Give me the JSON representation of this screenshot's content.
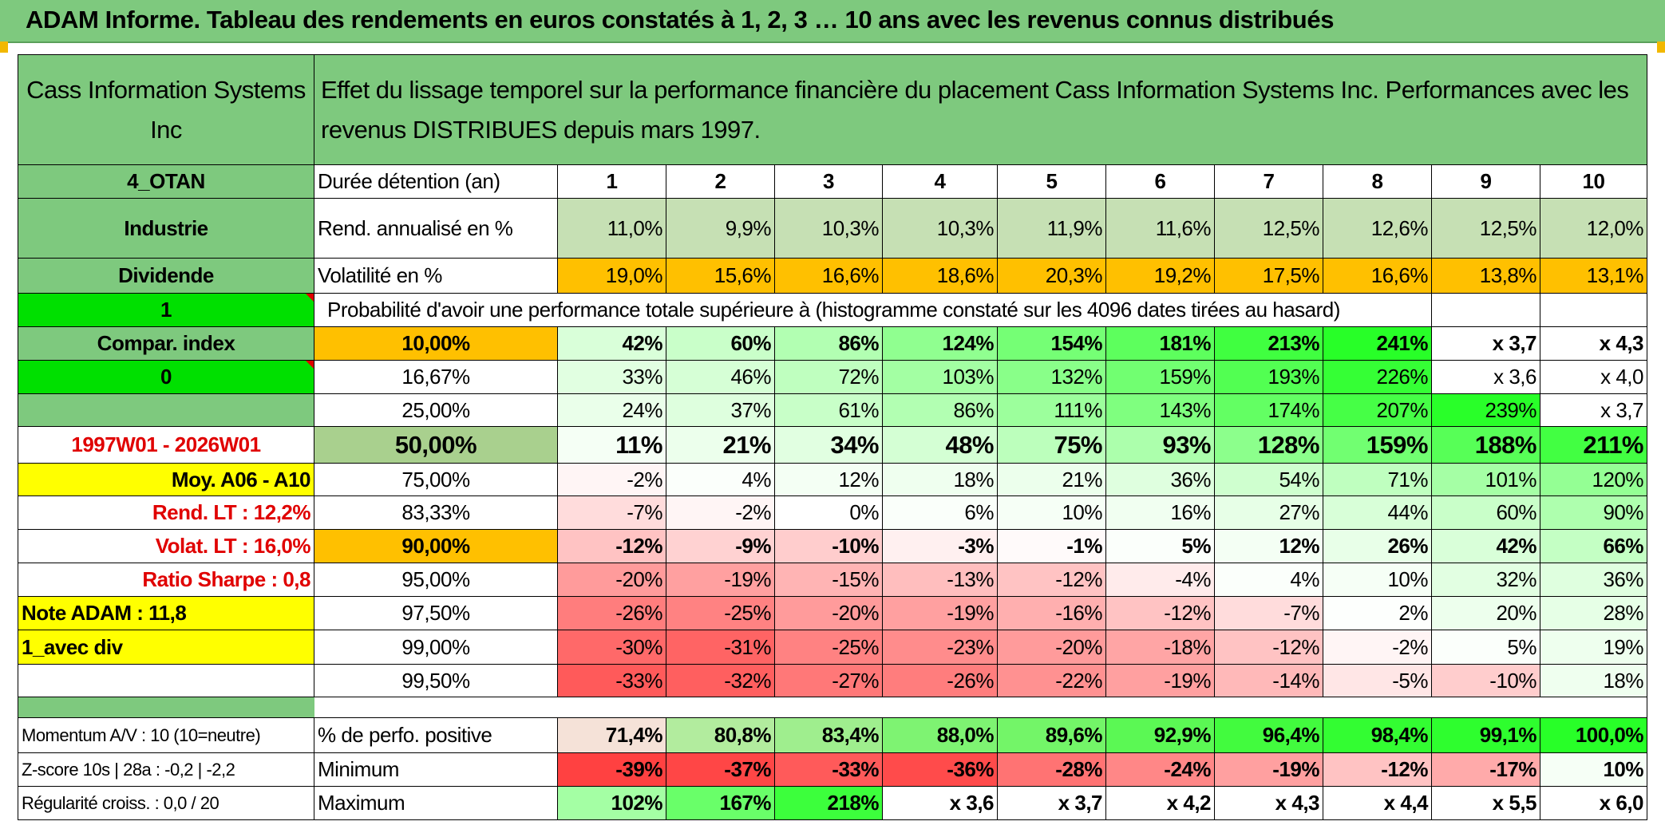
{
  "title": "ADAM Informe. Tableau des rendements en euros constatés à 1, 2, 3 … 10 ans avec les revenus connus distribués",
  "header": {
    "company": "Cass Information Systems Inc",
    "description": "Effet du lissage temporel sur la performance financière du placement Cass Information Systems Inc. Performances avec les revenus DISTRIBUES depuis mars 1997."
  },
  "sidebar": {
    "code": "4_OTAN",
    "sector": "Industrie",
    "dividend": "Dividende",
    "value_1": "1",
    "compar_index": "Compar. index",
    "value_0": "0",
    "period": "1997W01 - 2026W01",
    "moy": "Moy. A06 - A10",
    "rend_lt": "Rend. LT :    12,2%",
    "volat_lt": "Volat. LT :    16,0%",
    "sharpe": "Ratio Sharpe :    0,8",
    "note": "Note ADAM : 11,8",
    "avec_div": "1_avec div",
    "momentum": "Momentum A/V : 10 (10=neutre)",
    "zscore": "Z-score 10s | 28a : -0,2 | -2,2",
    "regularite": "Régularité croiss. : 0,0 / 20"
  },
  "table": {
    "duration_label": "Durée détention (an)",
    "years": [
      "1",
      "2",
      "3",
      "4",
      "5",
      "6",
      "7",
      "8",
      "9",
      "10"
    ],
    "rend_label": "Rend. annualisé en %",
    "rend": [
      "11,0%",
      "9,9%",
      "10,3%",
      "10,3%",
      "11,9%",
      "11,6%",
      "12,5%",
      "12,6%",
      "12,5%",
      "12,0%"
    ],
    "vol_label": "Volatilité en %",
    "vol": [
      "19,0%",
      "15,6%",
      "16,6%",
      "18,6%",
      "20,3%",
      "19,2%",
      "17,5%",
      "16,6%",
      "13,8%",
      "13,1%"
    ],
    "prob_title": "Probabilité d'avoir une performance totale supérieure à (histogramme constaté sur les 4096 dates tirées au hasard)",
    "prob_rows": [
      {
        "label": "10,00%",
        "values": [
          "42%",
          "60%",
          "86%",
          "124%",
          "154%",
          "181%",
          "213%",
          "241%",
          "x 3,7",
          "x 4,3"
        ]
      },
      {
        "label": "16,67%",
        "values": [
          "33%",
          "46%",
          "72%",
          "103%",
          "132%",
          "159%",
          "193%",
          "226%",
          "x 3,6",
          "x 4,0"
        ]
      },
      {
        "label": "25,00%",
        "values": [
          "24%",
          "37%",
          "61%",
          "86%",
          "111%",
          "143%",
          "174%",
          "207%",
          "239%",
          "x 3,7"
        ]
      },
      {
        "label": "50,00%",
        "values": [
          "11%",
          "21%",
          "34%",
          "48%",
          "75%",
          "93%",
          "128%",
          "159%",
          "188%",
          "211%"
        ]
      },
      {
        "label": "75,00%",
        "values": [
          "-2%",
          "4%",
          "12%",
          "18%",
          "21%",
          "36%",
          "54%",
          "71%",
          "101%",
          "120%"
        ]
      },
      {
        "label": "83,33%",
        "values": [
          "-7%",
          "-2%",
          "0%",
          "6%",
          "10%",
          "16%",
          "27%",
          "44%",
          "60%",
          "90%"
        ]
      },
      {
        "label": "90,00%",
        "values": [
          "-12%",
          "-9%",
          "-10%",
          "-3%",
          "-1%",
          "5%",
          "12%",
          "26%",
          "42%",
          "66%"
        ]
      },
      {
        "label": "95,00%",
        "values": [
          "-20%",
          "-19%",
          "-15%",
          "-13%",
          "-12%",
          "-4%",
          "4%",
          "10%",
          "32%",
          "36%"
        ]
      },
      {
        "label": "97,50%",
        "values": [
          "-26%",
          "-25%",
          "-20%",
          "-19%",
          "-16%",
          "-12%",
          "-7%",
          "2%",
          "20%",
          "28%"
        ]
      },
      {
        "label": "99,00%",
        "values": [
          "-30%",
          "-31%",
          "-25%",
          "-23%",
          "-20%",
          "-18%",
          "-12%",
          "-2%",
          "5%",
          "19%"
        ]
      },
      {
        "label": "99,50%",
        "values": [
          "-33%",
          "-32%",
          "-27%",
          "-26%",
          "-22%",
          "-19%",
          "-14%",
          "-5%",
          "-10%",
          "18%"
        ]
      }
    ],
    "summary_rows": [
      {
        "label": "% de perfo. positive",
        "values": [
          "71,4%",
          "80,8%",
          "83,4%",
          "88,0%",
          "89,6%",
          "92,9%",
          "96,4%",
          "98,4%",
          "99,1%",
          "100,0%"
        ]
      },
      {
        "label": "Minimum",
        "values": [
          "-39%",
          "-37%",
          "-33%",
          "-36%",
          "-28%",
          "-24%",
          "-19%",
          "-12%",
          "-17%",
          "10%"
        ]
      },
      {
        "label": "Maximum",
        "values": [
          "102%",
          "167%",
          "218%",
          "x 3,6",
          "x 3,7",
          "x 4,2",
          "x 4,3",
          "x 4,4",
          "x 5,5",
          "x 6,0"
        ]
      }
    ]
  },
  "colors": {
    "header_green": "#7ec97e",
    "bright_green": "#00e000",
    "orange": "#ffc000",
    "yellow": "#ffff00",
    "light_green": "#c6e0b4",
    "dark_red": "#e00000"
  }
}
